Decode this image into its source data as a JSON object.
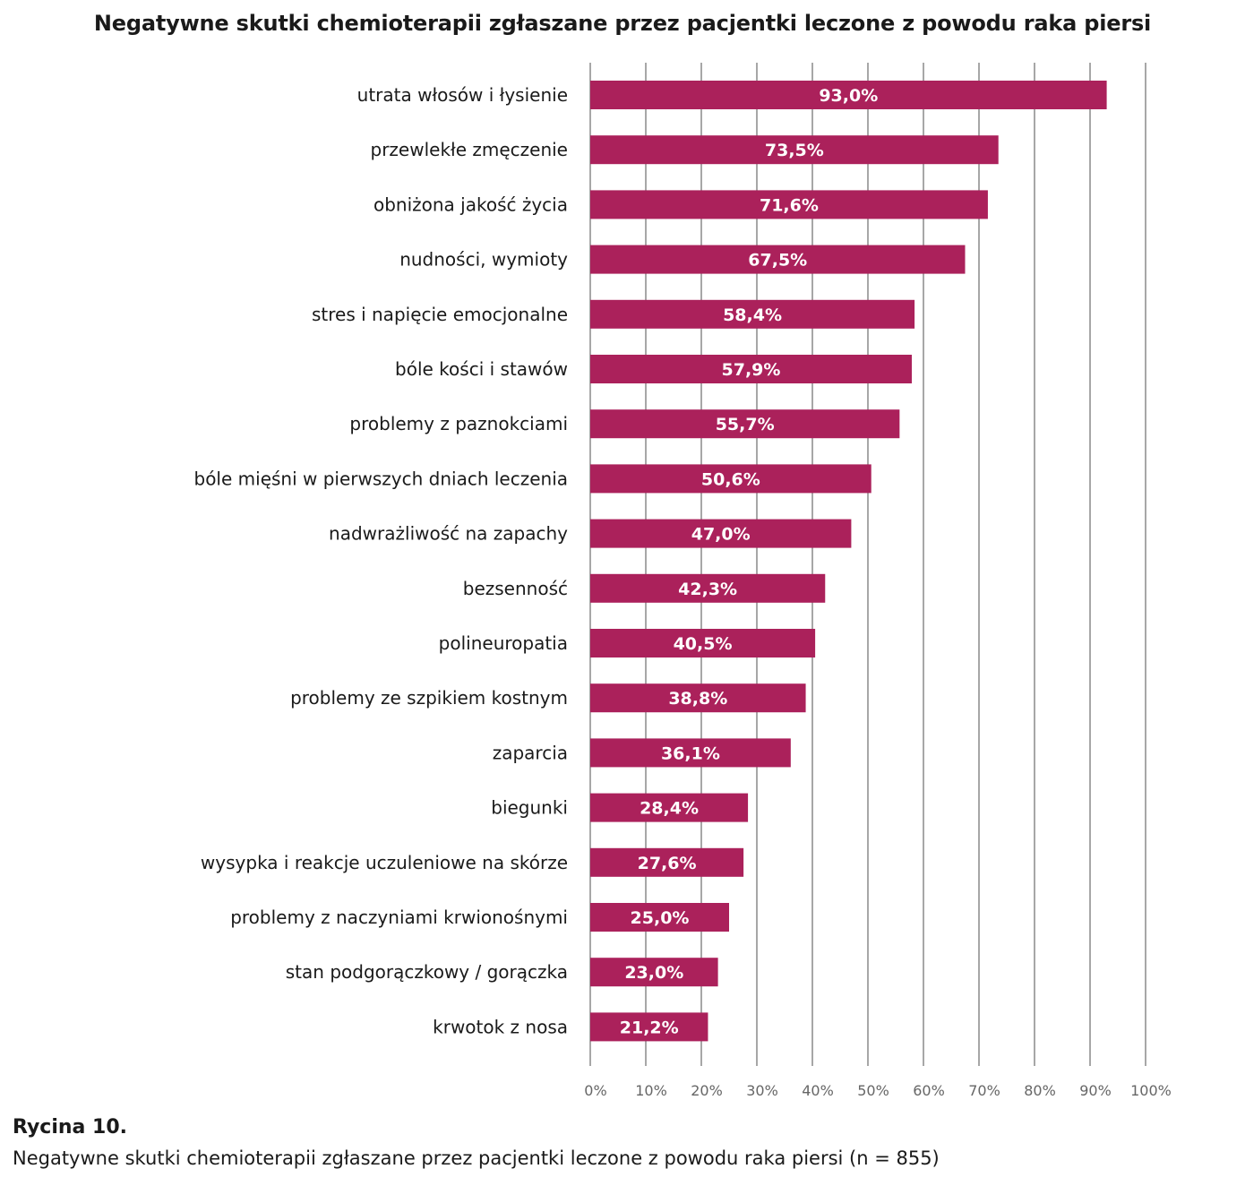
{
  "colors": {
    "bar": "#ab215b",
    "grid": "#8a8a8a",
    "text": "#1a1a1a",
    "tick": "#666666"
  },
  "chart_data": {
    "type": "bar",
    "orientation": "horizontal",
    "title": "Negatywne skutki chemioterapii zgłaszane przez pacjentki leczone z powodu raka piersi",
    "xlabel": "",
    "ylabel": "",
    "xlim": [
      0,
      100
    ],
    "grid": true,
    "legend": "none",
    "categories": [
      "utrata włosów i łysienie",
      "przewlekłe zmęczenie",
      "obniżona jakość życia",
      "nudności, wymioty",
      "stres i napięcie emocjonalne",
      "bóle kości i stawów",
      "problemy z paznokciami",
      "bóle mięśni w pierwszych dniach leczenia",
      "nadwrażliwość na zapachy",
      "bezsenność",
      "polineuropatia",
      "problemy ze szpikiem kostnym",
      "zaparcia",
      "biegunki",
      "wysypka i reakcje uczuleniowe na skórze",
      "problemy z naczyniami krwionośnymi",
      "stan podgorączkowy / gorączka",
      "krwotok z nosa"
    ],
    "values": [
      93.0,
      73.5,
      71.6,
      67.5,
      58.4,
      57.9,
      55.7,
      50.6,
      47.0,
      42.3,
      40.5,
      38.8,
      36.1,
      28.4,
      27.6,
      25.0,
      23.0,
      21.2
    ],
    "value_labels": [
      "93,0%",
      "73,5%",
      "71,6%",
      "67,5%",
      "58,4%",
      "57,9%",
      "55,7%",
      "50,6%",
      "47,0%",
      "42,3%",
      "40,5%",
      "38,8%",
      "36,1%",
      "28,4%",
      "27,6%",
      "25,0%",
      "23,0%",
      "21,2%"
    ],
    "ticks": [
      0,
      10,
      20,
      30,
      40,
      50,
      60,
      70,
      80,
      90,
      100
    ],
    "tick_labels": [
      "0%",
      "10%",
      "20%",
      "30%",
      "40%",
      "50%",
      "60%",
      "70%",
      "80%",
      "90%",
      "100%"
    ]
  },
  "caption": {
    "label": "Rycina 10.",
    "text": "Negatywne skutki chemioterapii zgłaszane przez pacjentki leczone z powodu raka piersi (n = 855)"
  }
}
